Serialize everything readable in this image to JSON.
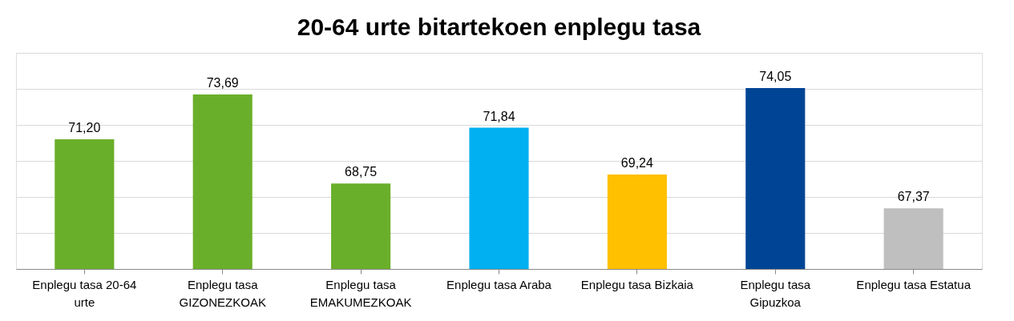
{
  "chart_data": {
    "type": "bar",
    "title": "20-64 urte bitartekoen enplegu tasa",
    "categories": [
      "Enplegu tasa 20-64 urte",
      "Enplegu tasa GIZONEZKOAK",
      "Enplegu tasa EMAKUMEZKOAK",
      "Enplegu tasa Araba",
      "Enplegu tasa Bizkaia",
      "Enplegu tasa Gipuzkoa",
      "Enplegu tasa Estatua"
    ],
    "values": [
      71.2,
      73.69,
      68.75,
      71.84,
      69.24,
      74.05,
      67.37
    ],
    "colors": [
      "#6aaf2a",
      "#6aaf2a",
      "#6aaf2a",
      "#00b0f0",
      "#ffc000",
      "#004595",
      "#bfbfbf"
    ],
    "value_labels": [
      "71,20",
      "73,69",
      "68,75",
      "71,84",
      "69,24",
      "74,05",
      "67,37"
    ],
    "ylim": [
      64,
      76
    ],
    "yticks": [
      {
        "value": 64,
        "label": null
      },
      {
        "value": 66,
        "label": null
      },
      {
        "value": 68,
        "label": null
      },
      {
        "value": 70,
        "label": null
      },
      {
        "value": 72,
        "label": null
      },
      {
        "value": 74,
        "label": null
      },
      {
        "value": 76,
        "label": null
      }
    ],
    "grid": "y",
    "tick_labels": "x"
  }
}
